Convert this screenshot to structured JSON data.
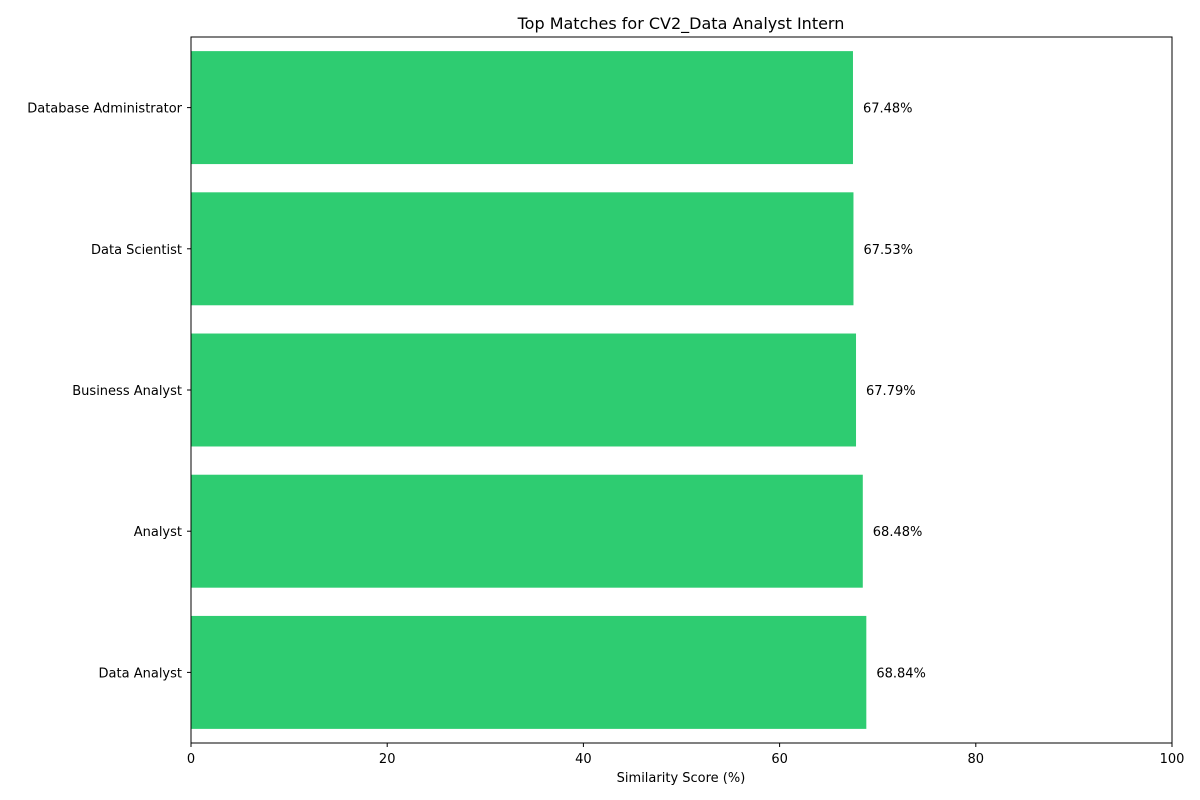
{
  "chart_data": {
    "type": "bar",
    "orientation": "horizontal",
    "title": "Top Matches for CV2_Data Analyst Intern",
    "xlabel": "Similarity Score (%)",
    "ylabel": "",
    "xlim": [
      0,
      100
    ],
    "xticks": [
      "0",
      "20",
      "40",
      "60",
      "80",
      "100"
    ],
    "categories": [
      "Data Analyst",
      "Analyst",
      "Business Analyst",
      "Data Scientist",
      "Database Administrator"
    ],
    "values": [
      68.84,
      68.48,
      67.79,
      67.53,
      67.48
    ],
    "value_labels": [
      "68.84%",
      "68.48%",
      "67.79%",
      "67.53%",
      "67.48%"
    ],
    "bar_color": "#2ecc71",
    "grid": false,
    "legend": "none"
  }
}
